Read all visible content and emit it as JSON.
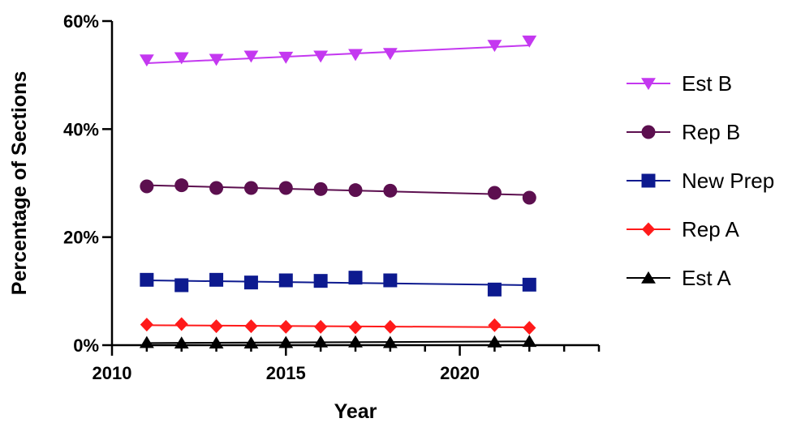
{
  "chart_data": {
    "type": "line",
    "title": "",
    "xlabel": "Year",
    "ylabel": "Percentage of Sections",
    "xlim": [
      2010,
      2024
    ],
    "ylim": [
      0,
      60
    ],
    "x_ticks": [
      2010,
      2015,
      2020
    ],
    "x_tick_labels": [
      "2010",
      "2015",
      "2020"
    ],
    "y_ticks": [
      0,
      20,
      40,
      60
    ],
    "y_tick_labels": [
      "0%",
      "20%",
      "40%",
      "60%"
    ],
    "grid": false,
    "legend_position": "right",
    "x": [
      2011,
      2012,
      2013,
      2014,
      2015,
      2016,
      2017,
      2018,
      2021,
      2022
    ],
    "series": [
      {
        "name": "Est B",
        "marker": "triangle-down",
        "color": "#c438f0",
        "values": [
          52.8,
          53.2,
          52.9,
          53.5,
          53.3,
          53.5,
          53.8,
          54.0,
          55.5,
          56.3
        ],
        "trend": [
          52.2,
          55.5
        ]
      },
      {
        "name": "Rep B",
        "marker": "circle",
        "color": "#5c0f4f",
        "values": [
          29.4,
          29.6,
          29.1,
          29.1,
          29.1,
          28.9,
          28.7,
          28.6,
          28.2,
          27.3
        ],
        "trend": [
          29.6,
          27.8
        ]
      },
      {
        "name": "New Prep",
        "marker": "square",
        "color": "#0d1a8f",
        "values": [
          12.1,
          11.1,
          12.1,
          11.6,
          12.0,
          11.9,
          12.5,
          12.0,
          10.3,
          11.2
        ],
        "trend": [
          12.0,
          11.1
        ]
      },
      {
        "name": "Rep A",
        "marker": "diamond",
        "color": "#ff1a1a",
        "values": [
          3.8,
          3.9,
          3.5,
          3.5,
          3.4,
          3.4,
          3.3,
          3.4,
          3.7,
          3.2
        ],
        "trend": [
          3.7,
          3.3
        ]
      },
      {
        "name": "Est A",
        "marker": "triangle-up",
        "color": "#000000",
        "values": [
          0.5,
          0.4,
          0.4,
          0.4,
          0.5,
          0.6,
          0.6,
          0.5,
          0.6,
          0.7
        ],
        "trend": [
          0.4,
          0.7
        ]
      }
    ]
  }
}
